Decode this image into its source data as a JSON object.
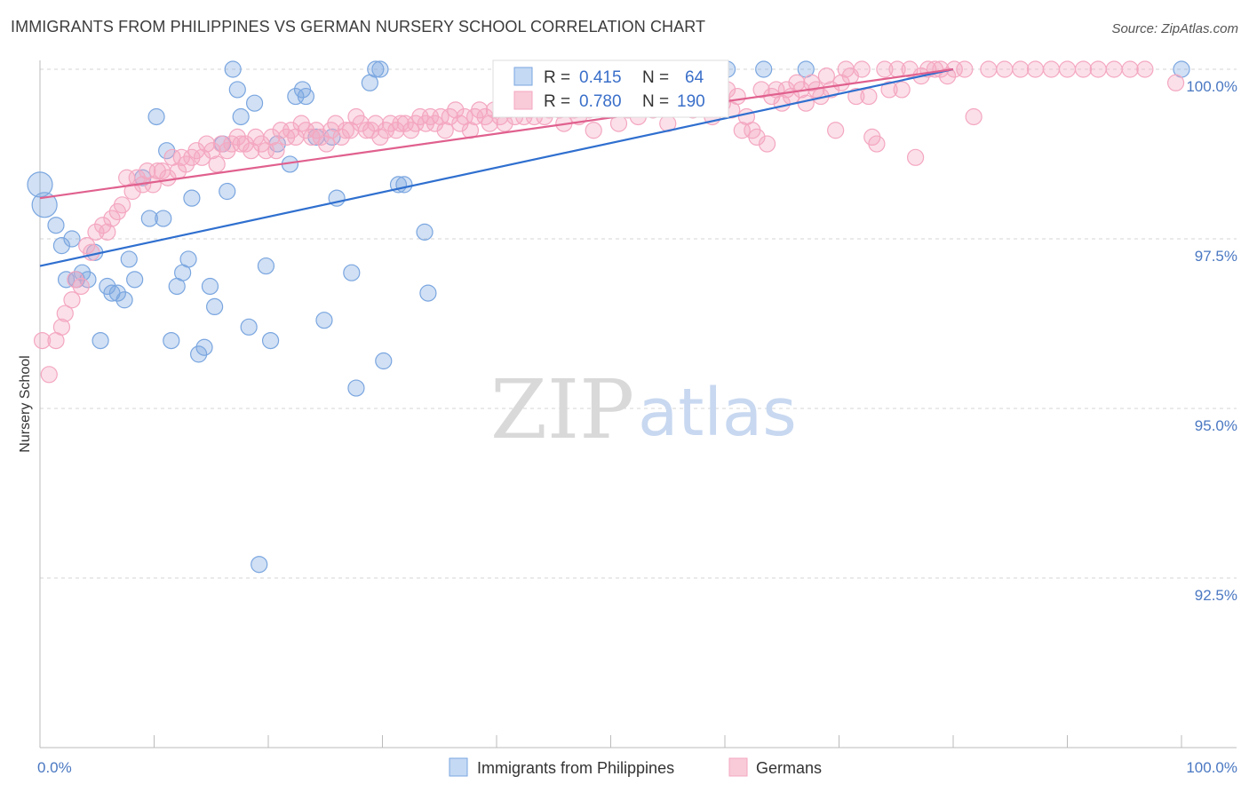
{
  "title": "IMMIGRANTS FROM PHILIPPINES VS GERMAN NURSERY SCHOOL CORRELATION CHART",
  "source": "Source: ZipAtlas.com",
  "watermark": {
    "zip": "ZIP",
    "atlas": "atlas"
  },
  "colors": {
    "blue": "#7aa6e0",
    "blue_line": "#2f6fcf",
    "pink": "#f4a7c0",
    "pink_line": "#e0608e"
  },
  "chart_data": {
    "type": "scatter",
    "ylabel": "Nursery School",
    "xlim": [
      0,
      100
    ],
    "ylim": [
      90.0,
      100.5
    ],
    "x_tick_labels": {
      "left": "0.0%",
      "right": "100.0%"
    },
    "y_ticks": [
      {
        "value": 100.0,
        "label": "100.0%"
      },
      {
        "value": 97.5,
        "label": "97.5%"
      },
      {
        "value": 95.0,
        "label": "95.0%"
      },
      {
        "value": 92.5,
        "label": "92.5%"
      }
    ],
    "legend": {
      "items": [
        "Immigrants from Philippines",
        "Germans"
      ]
    },
    "stats": [
      {
        "r_label": "R =",
        "r": "0.415",
        "n_label": "N =",
        "n": "64"
      },
      {
        "r_label": "R =",
        "r": "0.780",
        "n_label": "N =",
        "n": "190"
      }
    ],
    "series": [
      {
        "name": "Immigrants from Philippines",
        "trend": [
          [
            0,
            97.1
          ],
          [
            80,
            100.0
          ]
        ],
        "points": [
          [
            0.0,
            98.3
          ],
          [
            0.4,
            98.0
          ],
          [
            1.4,
            97.7
          ],
          [
            1.9,
            97.4
          ],
          [
            2.3,
            96.9
          ],
          [
            2.8,
            97.5
          ],
          [
            3.2,
            96.9
          ],
          [
            3.7,
            97.0
          ],
          [
            4.2,
            96.9
          ],
          [
            4.8,
            97.3
          ],
          [
            5.3,
            96.0
          ],
          [
            5.9,
            96.8
          ],
          [
            6.3,
            96.7
          ],
          [
            6.8,
            96.7
          ],
          [
            7.4,
            96.6
          ],
          [
            7.8,
            97.2
          ],
          [
            8.3,
            96.9
          ],
          [
            9.0,
            98.4
          ],
          [
            9.6,
            97.8
          ],
          [
            10.2,
            99.3
          ],
          [
            10.8,
            97.8
          ],
          [
            11.1,
            98.8
          ],
          [
            11.5,
            96.0
          ],
          [
            12.0,
            96.8
          ],
          [
            12.5,
            97.0
          ],
          [
            13.0,
            97.2
          ],
          [
            13.3,
            98.1
          ],
          [
            13.9,
            95.8
          ],
          [
            14.4,
            95.9
          ],
          [
            14.9,
            96.8
          ],
          [
            15.3,
            96.5
          ],
          [
            16.0,
            98.9
          ],
          [
            16.4,
            98.2
          ],
          [
            16.9,
            100.0
          ],
          [
            17.3,
            99.7
          ],
          [
            17.6,
            99.3
          ],
          [
            18.3,
            96.2
          ],
          [
            18.8,
            99.5
          ],
          [
            19.2,
            92.7
          ],
          [
            19.8,
            97.1
          ],
          [
            20.2,
            96.0
          ],
          [
            20.8,
            98.9
          ],
          [
            21.9,
            98.6
          ],
          [
            22.4,
            99.6
          ],
          [
            23.0,
            99.7
          ],
          [
            23.3,
            99.6
          ],
          [
            24.2,
            99.0
          ],
          [
            24.9,
            96.3
          ],
          [
            25.6,
            99.0
          ],
          [
            26.0,
            98.1
          ],
          [
            27.3,
            97.0
          ],
          [
            27.7,
            95.3
          ],
          [
            28.9,
            99.8
          ],
          [
            29.4,
            100.0
          ],
          [
            29.8,
            100.0
          ],
          [
            30.1,
            95.7
          ],
          [
            31.4,
            98.3
          ],
          [
            31.9,
            98.3
          ],
          [
            33.7,
            97.6
          ],
          [
            34.0,
            96.7
          ],
          [
            60.2,
            100.0
          ],
          [
            63.4,
            100.0
          ],
          [
            67.1,
            100.0
          ],
          [
            100.0,
            100.0
          ]
        ]
      },
      {
        "name": "Germans",
        "trend": [
          [
            0,
            98.1
          ],
          [
            80,
            100.0
          ]
        ],
        "points": [
          [
            0.2,
            96.0
          ],
          [
            0.8,
            95.5
          ],
          [
            1.4,
            96.0
          ],
          [
            1.9,
            96.2
          ],
          [
            2.2,
            96.4
          ],
          [
            2.8,
            96.6
          ],
          [
            3.1,
            96.9
          ],
          [
            3.6,
            96.8
          ],
          [
            4.1,
            97.4
          ],
          [
            4.5,
            97.3
          ],
          [
            4.9,
            97.6
          ],
          [
            5.5,
            97.7
          ],
          [
            5.9,
            97.6
          ],
          [
            6.3,
            97.8
          ],
          [
            6.8,
            97.9
          ],
          [
            7.2,
            98.0
          ],
          [
            7.6,
            98.4
          ],
          [
            8.1,
            98.2
          ],
          [
            8.5,
            98.4
          ],
          [
            9.0,
            98.3
          ],
          [
            9.4,
            98.5
          ],
          [
            9.9,
            98.3
          ],
          [
            10.3,
            98.5
          ],
          [
            10.7,
            98.5
          ],
          [
            11.2,
            98.4
          ],
          [
            11.6,
            98.7
          ],
          [
            12.1,
            98.5
          ],
          [
            12.4,
            98.7
          ],
          [
            12.8,
            98.6
          ],
          [
            13.3,
            98.7
          ],
          [
            13.7,
            98.8
          ],
          [
            14.2,
            98.7
          ],
          [
            14.6,
            98.9
          ],
          [
            15.1,
            98.8
          ],
          [
            15.5,
            98.6
          ],
          [
            15.9,
            98.9
          ],
          [
            16.4,
            98.8
          ],
          [
            16.8,
            98.9
          ],
          [
            17.3,
            99.0
          ],
          [
            17.6,
            98.9
          ],
          [
            18.0,
            98.9
          ],
          [
            18.5,
            98.8
          ],
          [
            18.9,
            99.0
          ],
          [
            19.4,
            98.9
          ],
          [
            19.8,
            98.8
          ],
          [
            20.3,
            99.0
          ],
          [
            20.7,
            98.8
          ],
          [
            21.1,
            99.1
          ],
          [
            21.6,
            99.0
          ],
          [
            22.0,
            99.1
          ],
          [
            22.4,
            99.0
          ],
          [
            22.9,
            99.2
          ],
          [
            23.3,
            99.1
          ],
          [
            23.8,
            99.0
          ],
          [
            24.2,
            99.1
          ],
          [
            24.6,
            99.0
          ],
          [
            25.1,
            98.9
          ],
          [
            25.5,
            99.1
          ],
          [
            25.9,
            99.2
          ],
          [
            26.4,
            99.0
          ],
          [
            26.8,
            99.1
          ],
          [
            27.2,
            99.1
          ],
          [
            27.7,
            99.3
          ],
          [
            28.1,
            99.2
          ],
          [
            28.6,
            99.1
          ],
          [
            29.0,
            99.1
          ],
          [
            29.4,
            99.2
          ],
          [
            29.8,
            99.0
          ],
          [
            30.3,
            99.1
          ],
          [
            30.7,
            99.2
          ],
          [
            31.2,
            99.1
          ],
          [
            31.6,
            99.2
          ],
          [
            32.0,
            99.2
          ],
          [
            32.5,
            99.1
          ],
          [
            32.9,
            99.2
          ],
          [
            33.3,
            99.3
          ],
          [
            33.8,
            99.2
          ],
          [
            34.2,
            99.3
          ],
          [
            34.6,
            99.2
          ],
          [
            35.1,
            99.3
          ],
          [
            35.5,
            99.1
          ],
          [
            35.9,
            99.3
          ],
          [
            36.4,
            99.4
          ],
          [
            36.8,
            99.2
          ],
          [
            37.2,
            99.3
          ],
          [
            37.7,
            99.1
          ],
          [
            38.1,
            99.3
          ],
          [
            38.5,
            99.4
          ],
          [
            39.0,
            99.3
          ],
          [
            39.4,
            99.2
          ],
          [
            39.8,
            99.4
          ],
          [
            40.3,
            99.3
          ],
          [
            40.7,
            99.2
          ],
          [
            41.1,
            99.4
          ],
          [
            41.6,
            99.3
          ],
          [
            42.0,
            99.5
          ],
          [
            42.4,
            99.3
          ],
          [
            42.9,
            99.4
          ],
          [
            43.3,
            99.3
          ],
          [
            43.7,
            99.5
          ],
          [
            44.2,
            99.3
          ],
          [
            44.6,
            99.4
          ],
          [
            45.0,
            99.5
          ],
          [
            45.5,
            99.4
          ],
          [
            45.9,
            99.2
          ],
          [
            46.3,
            99.5
          ],
          [
            46.8,
            99.4
          ],
          [
            47.2,
            99.3
          ],
          [
            47.6,
            99.5
          ],
          [
            48.1,
            99.4
          ],
          [
            48.5,
            99.1
          ],
          [
            48.9,
            99.5
          ],
          [
            49.4,
            99.4
          ],
          [
            49.8,
            99.6
          ],
          [
            50.2,
            99.4
          ],
          [
            50.7,
            99.2
          ],
          [
            51.1,
            99.6
          ],
          [
            51.5,
            99.4
          ],
          [
            52.0,
            99.5
          ],
          [
            52.4,
            99.3
          ],
          [
            52.8,
            99.6
          ],
          [
            53.3,
            99.5
          ],
          [
            53.7,
            99.4
          ],
          [
            54.1,
            99.6
          ],
          [
            54.6,
            99.5
          ],
          [
            55.0,
            99.2
          ],
          [
            55.4,
            99.6
          ],
          [
            55.9,
            99.5
          ],
          [
            56.3,
            99.7
          ],
          [
            56.7,
            99.5
          ],
          [
            57.2,
            99.4
          ],
          [
            57.6,
            99.6
          ],
          [
            58.0,
            99.5
          ],
          [
            58.5,
            99.7
          ],
          [
            58.9,
            99.3
          ],
          [
            59.3,
            99.6
          ],
          [
            59.8,
            99.5
          ],
          [
            60.2,
            99.7
          ],
          [
            60.6,
            99.4
          ],
          [
            61.1,
            99.6
          ],
          [
            61.5,
            99.1
          ],
          [
            61.9,
            99.3
          ],
          [
            62.4,
            99.1
          ],
          [
            62.8,
            99.0
          ],
          [
            63.2,
            99.7
          ],
          [
            63.7,
            98.9
          ],
          [
            64.1,
            99.6
          ],
          [
            64.5,
            99.7
          ],
          [
            65.0,
            99.5
          ],
          [
            65.4,
            99.7
          ],
          [
            65.8,
            99.6
          ],
          [
            66.3,
            99.8
          ],
          [
            66.7,
            99.7
          ],
          [
            67.1,
            99.5
          ],
          [
            67.6,
            99.8
          ],
          [
            68.0,
            99.7
          ],
          [
            68.4,
            99.6
          ],
          [
            68.9,
            99.9
          ],
          [
            69.3,
            99.7
          ],
          [
            69.7,
            99.1
          ],
          [
            70.2,
            99.8
          ],
          [
            70.6,
            100.0
          ],
          [
            71.0,
            99.9
          ],
          [
            71.5,
            99.6
          ],
          [
            72.0,
            100.0
          ],
          [
            72.6,
            99.6
          ],
          [
            72.9,
            99.0
          ],
          [
            73.3,
            98.9
          ],
          [
            74.0,
            100.0
          ],
          [
            74.4,
            99.7
          ],
          [
            75.1,
            100.0
          ],
          [
            75.5,
            99.7
          ],
          [
            76.2,
            100.0
          ],
          [
            76.7,
            98.7
          ],
          [
            77.2,
            99.9
          ],
          [
            77.8,
            100.0
          ],
          [
            78.4,
            100.0
          ],
          [
            78.9,
            100.0
          ],
          [
            79.5,
            99.9
          ],
          [
            80.1,
            100.0
          ],
          [
            81.0,
            100.0
          ],
          [
            81.8,
            99.3
          ],
          [
            83.1,
            100.0
          ],
          [
            84.5,
            100.0
          ],
          [
            85.9,
            100.0
          ],
          [
            87.2,
            100.0
          ],
          [
            88.6,
            100.0
          ],
          [
            90.0,
            100.0
          ],
          [
            91.4,
            100.0
          ],
          [
            92.7,
            100.0
          ],
          [
            94.1,
            100.0
          ],
          [
            95.5,
            100.0
          ],
          [
            96.8,
            100.0
          ],
          [
            99.5,
            99.8
          ]
        ]
      }
    ]
  }
}
